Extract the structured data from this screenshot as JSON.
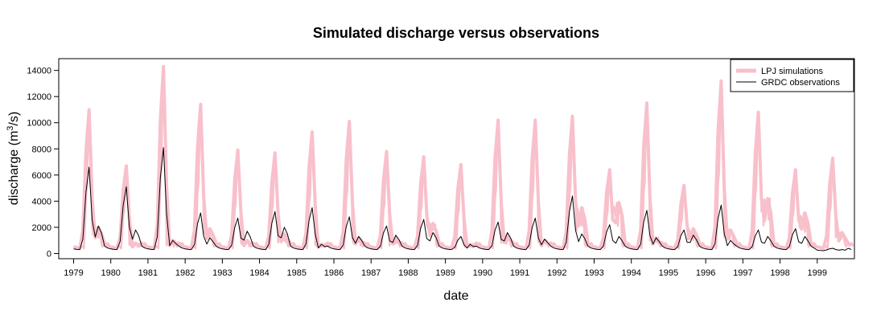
{
  "chart_data": {
    "type": "line",
    "title": "Simulated discharge versus observations",
    "xlabel": "date",
    "ylabel": "discharge (m",
    "ylabel_sup": "3",
    "ylabel_end": "/s)",
    "xlim": [
      1978.6,
      2000.0
    ],
    "ylim": [
      -400,
      14900
    ],
    "x_ticks": [
      1979,
      1980,
      1981,
      1982,
      1983,
      1984,
      1985,
      1986,
      1987,
      1988,
      1989,
      1990,
      1991,
      1992,
      1993,
      1994,
      1995,
      1996,
      1997,
      1998,
      1999
    ],
    "x_tick_labels": [
      "1979",
      "1980",
      "1981",
      "1982",
      "1983",
      "1984",
      "1985",
      "1986",
      "1987",
      "1988",
      "1989",
      "1990",
      "1991",
      "1992",
      "1993",
      "1994",
      "1995",
      "1996",
      "1997",
      "1998",
      "1999"
    ],
    "y_ticks": [
      0,
      2000,
      4000,
      6000,
      8000,
      10000,
      12000,
      14000
    ],
    "y_tick_labels": [
      "0",
      "2000",
      "4000",
      "6000",
      "8000",
      "10000",
      "12000",
      "14000"
    ],
    "legend_position": "top-right",
    "grid": false,
    "series": [
      {
        "name": "LPJ simulations",
        "color": "#f8c0cb",
        "peaks": [
          {
            "year": 1979,
            "peak": 11000,
            "secondary": 2000,
            "base": 500
          },
          {
            "year": 1980,
            "peak": 6700,
            "secondary": 800,
            "base": 500
          },
          {
            "year": 1981,
            "peak": 14300,
            "secondary": 1000,
            "base": 500
          },
          {
            "year": 1982,
            "peak": 11400,
            "secondary": 1900,
            "base": 500
          },
          {
            "year": 1983,
            "peak": 7900,
            "secondary": 1000,
            "base": 500
          },
          {
            "year": 1984,
            "peak": 7700,
            "secondary": 1500,
            "base": 500
          },
          {
            "year": 1985,
            "peak": 9300,
            "secondary": 700,
            "base": 500
          },
          {
            "year": 1986,
            "peak": 10100,
            "secondary": 1200,
            "base": 500
          },
          {
            "year": 1987,
            "peak": 7800,
            "secondary": 1200,
            "base": 500
          },
          {
            "year": 1988,
            "peak": 7400,
            "secondary": 2300,
            "base": 500
          },
          {
            "year": 1989,
            "peak": 6800,
            "secondary": 700,
            "base": 500
          },
          {
            "year": 1990,
            "peak": 10200,
            "secondary": 1400,
            "base": 500
          },
          {
            "year": 1991,
            "peak": 10200,
            "secondary": 1000,
            "base": 500
          },
          {
            "year": 1992,
            "peak": 10500,
            "secondary": 3500,
            "base": 500
          },
          {
            "year": 1993,
            "peak": 6400,
            "secondary": 3900,
            "base": 500
          },
          {
            "year": 1994,
            "peak": 11500,
            "secondary": 1200,
            "base": 500
          },
          {
            "year": 1995,
            "peak": 5200,
            "secondary": 1900,
            "base": 500
          },
          {
            "year": 1996,
            "peak": 13200,
            "secondary": 1800,
            "base": 500
          },
          {
            "year": 1997,
            "peak": 10800,
            "secondary": 4200,
            "base": 500
          },
          {
            "year": 1998,
            "peak": 6400,
            "secondary": 3100,
            "base": 500
          },
          {
            "year": 1999,
            "peak": 7300,
            "secondary": 1600,
            "base": 500
          }
        ]
      },
      {
        "name": "GRDC observations",
        "color": "#000000",
        "peaks": [
          {
            "year": 1979,
            "peak": 6600,
            "secondary": 2100,
            "base": 350
          },
          {
            "year": 1980,
            "peak": 5100,
            "secondary": 1800,
            "base": 350
          },
          {
            "year": 1981,
            "peak": 8100,
            "secondary": 1000,
            "base": 350
          },
          {
            "year": 1982,
            "peak": 3100,
            "secondary": 1200,
            "base": 350
          },
          {
            "year": 1983,
            "peak": 2700,
            "secondary": 1700,
            "base": 350
          },
          {
            "year": 1984,
            "peak": 3200,
            "secondary": 2000,
            "base": 350
          },
          {
            "year": 1985,
            "peak": 3500,
            "secondary": 700,
            "base": 350
          },
          {
            "year": 1986,
            "peak": 2800,
            "secondary": 1300,
            "base": 350
          },
          {
            "year": 1987,
            "peak": 2100,
            "secondary": 1400,
            "base": 350
          },
          {
            "year": 1988,
            "peak": 2600,
            "secondary": 1600,
            "base": 350
          },
          {
            "year": 1989,
            "peak": 1300,
            "secondary": 700,
            "base": 350
          },
          {
            "year": 1990,
            "peak": 2400,
            "secondary": 1600,
            "base": 350
          },
          {
            "year": 1991,
            "peak": 2700,
            "secondary": 1100,
            "base": 350
          },
          {
            "year": 1992,
            "peak": 4400,
            "secondary": 1500,
            "base": 350
          },
          {
            "year": 1993,
            "peak": 2200,
            "secondary": 1300,
            "base": 350
          },
          {
            "year": 1994,
            "peak": 3300,
            "secondary": 1200,
            "base": 350
          },
          {
            "year": 1995,
            "peak": 1800,
            "secondary": 1400,
            "base": 350
          },
          {
            "year": 1996,
            "peak": 3700,
            "secondary": 1000,
            "base": 350
          },
          {
            "year": 1997,
            "peak": 1800,
            "secondary": 1300,
            "base": 350
          },
          {
            "year": 1998,
            "peak": 1900,
            "secondary": 1300,
            "base": 350
          },
          {
            "year": 1999,
            "peak": 400,
            "secondary": 300,
            "base": 250
          }
        ]
      }
    ]
  }
}
